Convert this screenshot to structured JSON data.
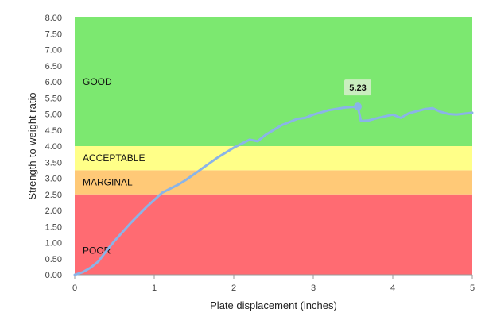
{
  "chart_data": {
    "type": "line",
    "title": "",
    "xlabel": "Plate displacement (inches)",
    "ylabel": "Strength-to-weight ratio",
    "xlim": [
      0,
      5
    ],
    "ylim": [
      0,
      8
    ],
    "x_ticks": [
      "0",
      "1",
      "2",
      "3",
      "4",
      "5"
    ],
    "y_ticks": [
      "0.00",
      "0.50",
      "1.00",
      "1.50",
      "2.00",
      "2.50",
      "3.00",
      "3.50",
      "4.00",
      "4.50",
      "5.00",
      "5.50",
      "6.00",
      "6.50",
      "7.00",
      "7.50",
      "8.00"
    ],
    "bands": [
      {
        "label": "POOR",
        "from": 0,
        "to": 2.5,
        "color": "#ff6b72"
      },
      {
        "label": "MARGINAL",
        "from": 2.5,
        "to": 3.25,
        "color": "#ffc977"
      },
      {
        "label": "ACCEPTABLE",
        "from": 3.25,
        "to": 4.0,
        "color": "#ffff88"
      },
      {
        "label": "GOOD",
        "from": 4.0,
        "to": 8.0,
        "color": "#7ce870"
      }
    ],
    "series": [
      {
        "color": "#8ab4e8",
        "x": [
          0,
          0.1,
          0.2,
          0.3,
          0.4,
          0.5,
          0.7,
          0.9,
          1.1,
          1.3,
          1.4,
          1.6,
          1.8,
          2.0,
          2.2,
          2.3,
          2.4,
          2.6,
          2.8,
          2.9,
          3.0,
          3.2,
          3.4,
          3.56,
          3.6,
          3.7,
          3.8,
          4.0,
          4.1,
          4.2,
          4.4,
          4.5,
          4.6,
          4.7,
          4.8,
          5.0
        ],
        "y": [
          0.0,
          0.08,
          0.22,
          0.42,
          0.75,
          1.05,
          1.6,
          2.1,
          2.55,
          2.8,
          2.95,
          3.3,
          3.65,
          3.95,
          4.2,
          4.15,
          4.35,
          4.65,
          4.85,
          4.88,
          4.98,
          5.12,
          5.2,
          5.23,
          4.78,
          4.8,
          4.87,
          4.98,
          4.88,
          5.02,
          5.15,
          5.18,
          5.07,
          5.0,
          4.98,
          5.04
        ]
      }
    ],
    "peak": {
      "x": 3.56,
      "y": 5.23,
      "label": "5.23"
    },
    "grid": false,
    "legend": "none"
  }
}
